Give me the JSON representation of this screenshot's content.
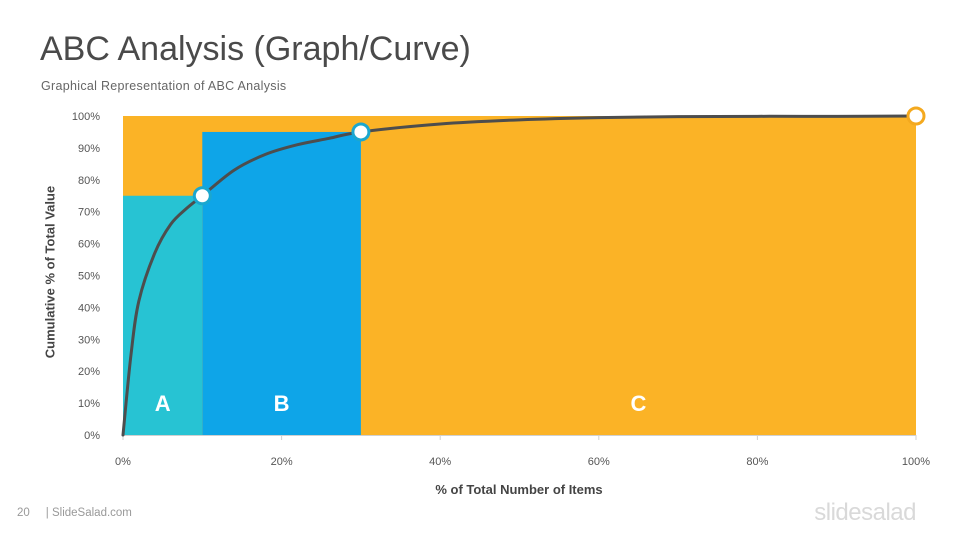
{
  "slide": {
    "title": "ABC Analysis (Graph/Curve)",
    "subtitle": "Graphical Representation of ABC Analysis",
    "page_number": "20",
    "footer_site": "| SlideSalad.com",
    "brand": "slidesalad"
  },
  "colors": {
    "class_a": "#27c3d3",
    "class_b": "#0ea5e8",
    "class_c": "#fbb326",
    "curve": "#4d4d4d",
    "marker_ab": "#1ba7cf",
    "marker_c": "#f4a91e"
  },
  "chart_data": {
    "type": "area",
    "xlabel": "% of Total Number of Items",
    "ylabel": "Cumulative % of Total Value",
    "xlim": [
      0,
      100
    ],
    "ylim": [
      0,
      100
    ],
    "x_ticks": [
      "0%",
      "20%",
      "40%",
      "60%",
      "80%",
      "100%"
    ],
    "y_ticks": [
      "0%",
      "10%",
      "20%",
      "30%",
      "40%",
      "50%",
      "60%",
      "70%",
      "80%",
      "90%",
      "100%"
    ],
    "regions": [
      {
        "name": "A",
        "x_start": 0,
        "x_end": 10,
        "y_max": 75
      },
      {
        "name": "B",
        "x_start": 10,
        "x_end": 30,
        "y_max": 95
      },
      {
        "name": "C",
        "x_start": 30,
        "x_end": 100,
        "y_max": 100
      }
    ],
    "curve": {
      "x": [
        0,
        1,
        2,
        4,
        6,
        8,
        10,
        14,
        18,
        22,
        26,
        30,
        40,
        50,
        60,
        70,
        80,
        90,
        100
      ],
      "y": [
        0,
        25,
        42,
        57,
        66,
        71,
        75,
        83,
        88,
        91,
        93,
        95,
        97.5,
        98.8,
        99.5,
        99.8,
        99.9,
        99.9,
        100
      ]
    },
    "markers": [
      {
        "x": 10,
        "y": 75
      },
      {
        "x": 30,
        "y": 95
      },
      {
        "x": 100,
        "y": 100
      }
    ],
    "grid": false,
    "legend": "none"
  }
}
